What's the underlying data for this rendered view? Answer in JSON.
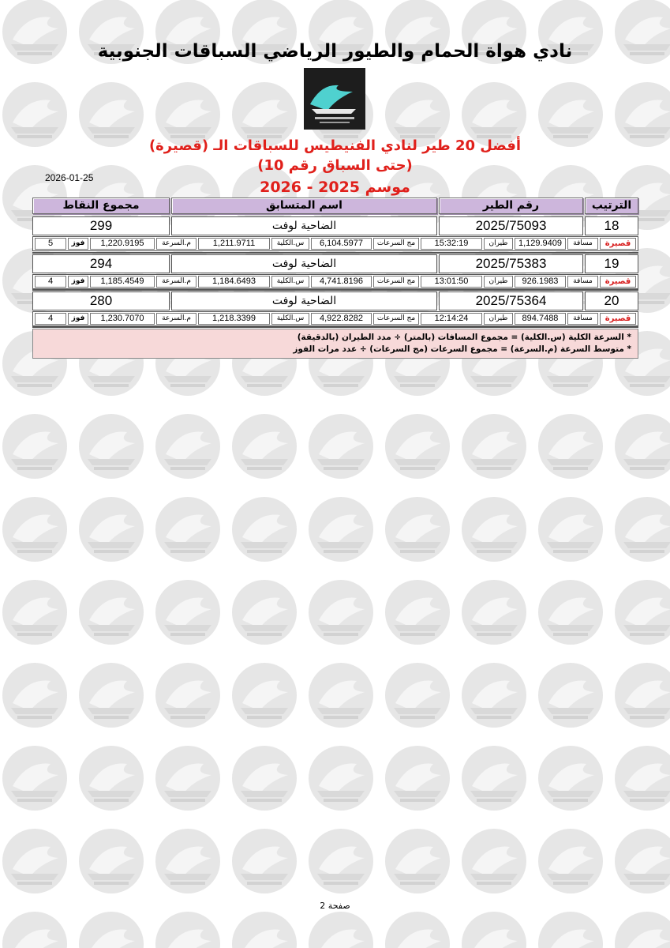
{
  "header": {
    "club_title": "نادي هواة الحمام والطيور الرياضي السباقات الجنوبية",
    "heading_line1": "أفضل 20 طير لنادي الفنيطيس للسباقات الـ (قصيرة)",
    "heading_line2": "(حتى السباق رقم 10)",
    "heading_line3": "موسم 2025 - 2026",
    "date": "2026-01-25",
    "logo_icon": "club-logo-icon"
  },
  "columns": {
    "rank": "الترتيب",
    "ring": "رقم الطير",
    "name": "اسم المتسابق",
    "points": "مجموع النقاط"
  },
  "detail_labels": {
    "race_type": "قصيرة",
    "distance": "مسافة",
    "flight": "طيران",
    "sum_speeds": "مج السرعات",
    "total_speed": "س.الكلية",
    "avg_speed": "م.السرعة",
    "wins": "فوز"
  },
  "records": [
    {
      "rank": "18",
      "ring": "2025/75093",
      "name": "الضاحية لوفت",
      "points": "299",
      "distance": "1,129.9409",
      "flight": "15:32:19",
      "sum_speeds": "6,104.5977",
      "total_speed": "1,211.9711",
      "avg_speed": "1,220.9195",
      "wins": "5"
    },
    {
      "rank": "19",
      "ring": "2025/75383",
      "name": "الضاحية لوفت",
      "points": "294",
      "distance": "926.1983",
      "flight": "13:01:50",
      "sum_speeds": "4,741.8196",
      "total_speed": "1,184.6493",
      "avg_speed": "1,185.4549",
      "wins": "4"
    },
    {
      "rank": "20",
      "ring": "2025/75364",
      "name": "الضاحية لوفت",
      "points": "280",
      "distance": "894.7488",
      "flight": "12:14:24",
      "sum_speeds": "4,922.8282",
      "total_speed": "1,218.3399",
      "avg_speed": "1,230.7070",
      "wins": "4"
    }
  ],
  "notes": {
    "line1": "* السرعة الكلية (س.الكلية) = مجموع المسافات (بالمتر) ÷ مدد الطيران (بالدقيقة)",
    "line2": "* متوسط السرعة (م.السرعة) = مجموع السرعات (مج السرعات) ÷ عدد مرات الفوز"
  },
  "footer": {
    "page_label": "صفحة 2"
  },
  "colors": {
    "header_bg": "#cdb6dc",
    "accent_red": "#e0201b",
    "notes_bg": "#f7d9d9",
    "watermark": "#e4e4e4"
  }
}
